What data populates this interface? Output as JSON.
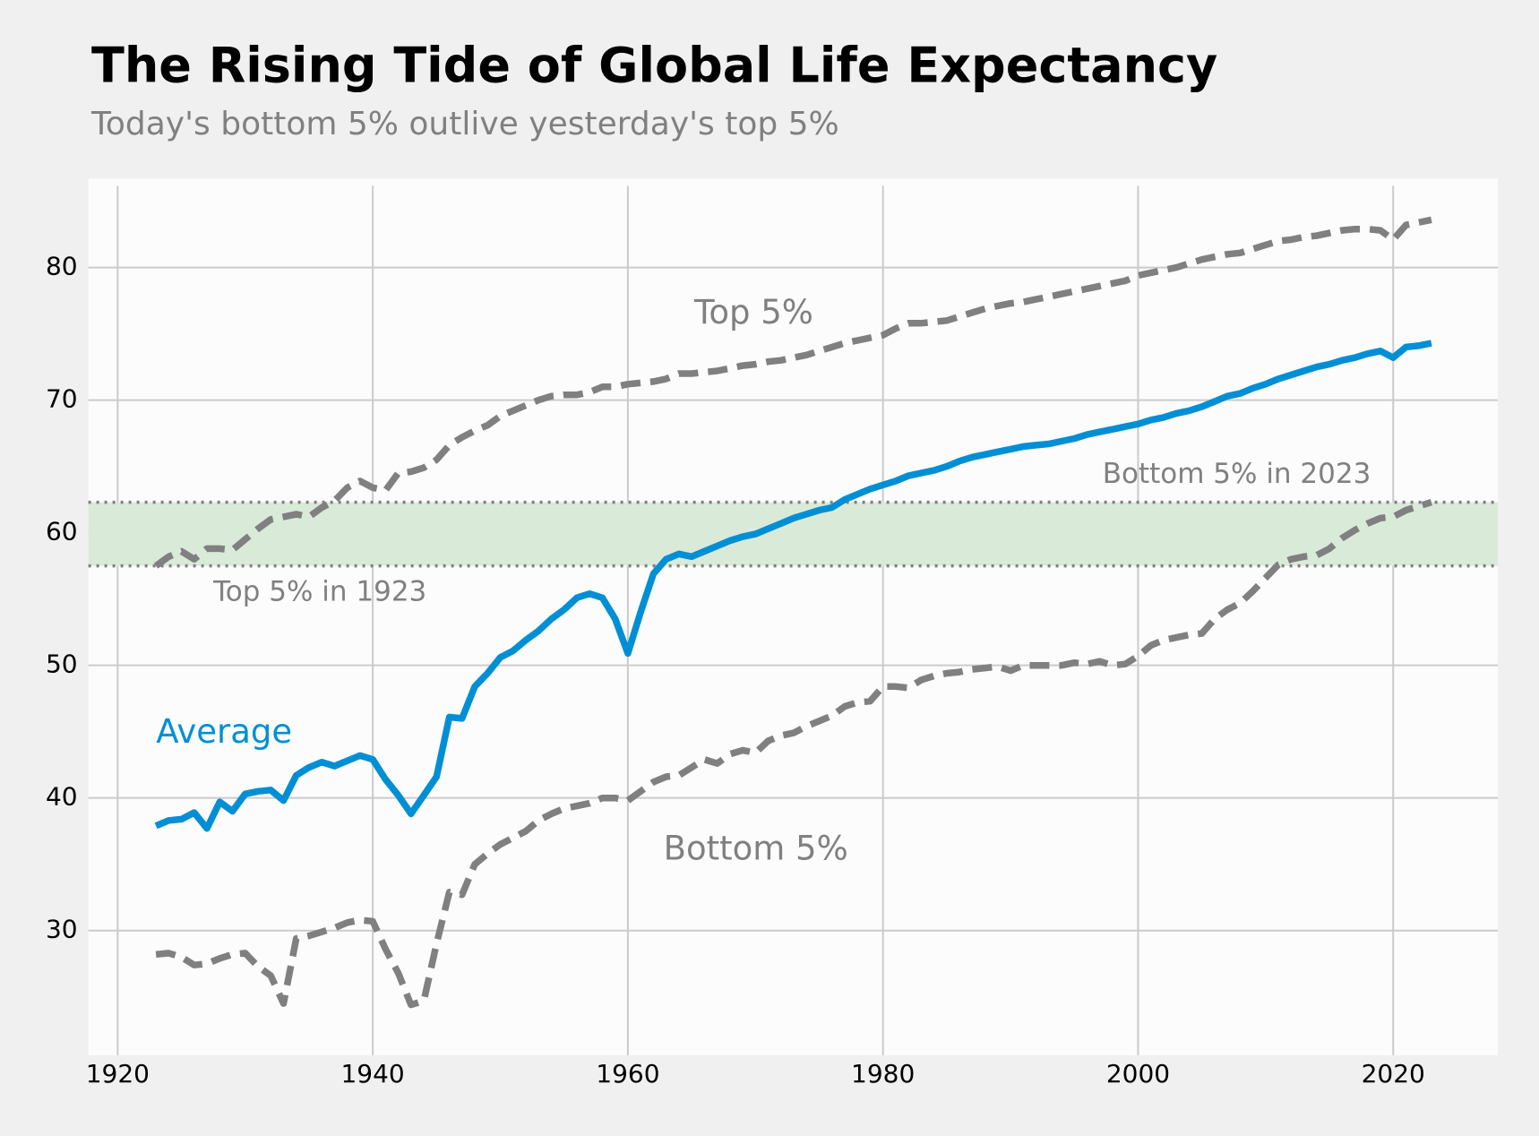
{
  "chart_data": {
    "type": "line",
    "title": "The Rising Tide of Global Life Expectancy",
    "subtitle": "Today's bottom 5% outlive yesterday's top 5%",
    "x": [
      1923,
      1924,
      1925,
      1926,
      1927,
      1928,
      1929,
      1930,
      1931,
      1932,
      1933,
      1934,
      1935,
      1936,
      1937,
      1938,
      1939,
      1940,
      1941,
      1942,
      1943,
      1944,
      1945,
      1946,
      1947,
      1948,
      1949,
      1950,
      1951,
      1952,
      1953,
      1954,
      1955,
      1956,
      1957,
      1958,
      1959,
      1960,
      1961,
      1962,
      1963,
      1964,
      1965,
      1966,
      1967,
      1968,
      1969,
      1970,
      1971,
      1972,
      1973,
      1974,
      1975,
      1976,
      1977,
      1978,
      1979,
      1980,
      1981,
      1982,
      1983,
      1984,
      1985,
      1986,
      1987,
      1988,
      1989,
      1990,
      1991,
      1992,
      1993,
      1994,
      1995,
      1996,
      1997,
      1998,
      1999,
      2000,
      2001,
      2002,
      2003,
      2004,
      2005,
      2006,
      2007,
      2008,
      2009,
      2010,
      2011,
      2012,
      2013,
      2014,
      2015,
      2016,
      2017,
      2018,
      2019,
      2020,
      2021,
      2022,
      2023
    ],
    "series": [
      {
        "name": "Top 5%",
        "color": "#808080",
        "dashed": true,
        "values": [
          57.5,
          58.2,
          58.6,
          58.0,
          58.8,
          58.8,
          58.7,
          59.5,
          60.3,
          61.0,
          61.2,
          61.4,
          61.2,
          61.9,
          62.4,
          63.4,
          63.9,
          63.4,
          63.2,
          64.5,
          64.6,
          64.9,
          65.5,
          66.6,
          67.2,
          67.7,
          68.1,
          68.8,
          69.2,
          69.6,
          70.0,
          70.3,
          70.4,
          70.4,
          70.6,
          71.0,
          71.0,
          71.2,
          71.3,
          71.4,
          71.6,
          72.0,
          72.0,
          72.1,
          72.2,
          72.4,
          72.6,
          72.7,
          72.9,
          73.0,
          73.2,
          73.4,
          73.7,
          74.0,
          74.3,
          74.5,
          74.7,
          74.9,
          75.4,
          75.8,
          75.8,
          75.9,
          76.0,
          76.3,
          76.6,
          76.9,
          77.1,
          77.3,
          77.4,
          77.6,
          77.8,
          78.0,
          78.2,
          78.4,
          78.6,
          78.8,
          79.0,
          79.4,
          79.6,
          79.8,
          80.0,
          80.3,
          80.6,
          80.8,
          81.0,
          81.1,
          81.4,
          81.7,
          82.0,
          82.1,
          82.3,
          82.4,
          82.6,
          82.8,
          82.9,
          82.9,
          82.8,
          82.1,
          83.2,
          83.4,
          83.6
        ]
      },
      {
        "name": "Average",
        "color": "#008fd5",
        "dashed": false,
        "values": [
          37.9,
          38.3,
          38.4,
          38.9,
          37.7,
          39.7,
          39.0,
          40.3,
          40.5,
          40.6,
          39.8,
          41.7,
          42.3,
          42.7,
          42.4,
          42.8,
          43.2,
          42.9,
          41.4,
          40.2,
          38.8,
          40.2,
          41.6,
          46.1,
          46.0,
          48.4,
          49.4,
          50.6,
          51.1,
          51.9,
          52.6,
          53.5,
          54.2,
          55.1,
          55.4,
          55.1,
          53.5,
          50.9,
          54.0,
          56.9,
          58.0,
          58.4,
          58.2,
          58.6,
          59.0,
          59.4,
          59.7,
          59.9,
          60.3,
          60.7,
          61.1,
          61.4,
          61.7,
          61.9,
          62.5,
          62.9,
          63.3,
          63.6,
          63.9,
          64.3,
          64.5,
          64.7,
          65.0,
          65.4,
          65.7,
          65.9,
          66.1,
          66.3,
          66.5,
          66.6,
          66.7,
          66.9,
          67.1,
          67.4,
          67.6,
          67.8,
          68.0,
          68.2,
          68.5,
          68.7,
          69.0,
          69.2,
          69.5,
          69.9,
          70.3,
          70.5,
          70.9,
          71.2,
          71.6,
          71.9,
          72.2,
          72.5,
          72.7,
          73.0,
          73.2,
          73.5,
          73.7,
          73.2,
          74.0,
          74.1,
          74.3
        ]
      },
      {
        "name": "Bottom 5%",
        "color": "#808080",
        "dashed": true,
        "values": [
          28.2,
          28.3,
          28.0,
          27.4,
          27.5,
          27.9,
          28.2,
          28.3,
          27.3,
          26.6,
          24.5,
          29.4,
          29.6,
          29.9,
          30.2,
          30.6,
          30.8,
          30.7,
          28.6,
          26.8,
          24.4,
          24.7,
          29.0,
          32.9,
          32.7,
          35.0,
          35.8,
          36.5,
          37.0,
          37.5,
          38.3,
          38.8,
          39.2,
          39.4,
          39.6,
          40.0,
          40.0,
          39.8,
          40.5,
          41.2,
          41.6,
          41.7,
          42.3,
          42.9,
          42.6,
          43.3,
          43.6,
          43.4,
          44.3,
          44.7,
          44.9,
          45.4,
          45.8,
          46.2,
          46.9,
          47.2,
          47.3,
          48.4,
          48.4,
          48.3,
          48.9,
          49.2,
          49.4,
          49.5,
          49.7,
          49.8,
          49.9,
          49.6,
          50.0,
          50.0,
          50.0,
          50.0,
          50.2,
          50.1,
          50.3,
          50.0,
          50.1,
          50.7,
          51.5,
          51.9,
          52.1,
          52.3,
          52.4,
          53.5,
          54.2,
          54.7,
          55.6,
          56.6,
          57.6,
          58.0,
          58.2,
          58.3,
          58.8,
          59.6,
          60.2,
          60.7,
          61.1,
          61.2,
          61.7,
          62.0,
          62.3
        ]
      }
    ],
    "band": [
      57.5,
      62.3
    ],
    "band_color": "#d9ead9",
    "band_labels": [
      "Top 5% in 1923",
      "Bottom 5% in 2023"
    ],
    "xlim": [
      1917.7,
      2028.2
    ],
    "ylim": [
      20.6,
      86.7
    ],
    "xticks": [
      1920,
      1940,
      1960,
      1980,
      2000,
      2020
    ],
    "yticks": [
      30,
      40,
      50,
      60,
      70,
      80
    ],
    "grid": true
  }
}
